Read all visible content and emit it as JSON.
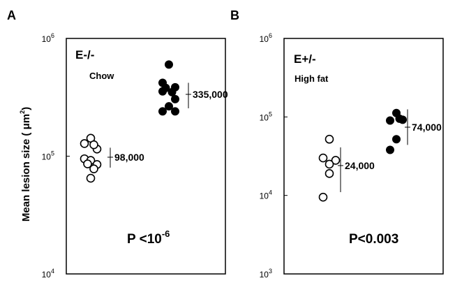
{
  "chart_data": [
    {
      "type": "scatter",
      "panel": "A",
      "group_label": "E-/-",
      "diet_label": "Chow",
      "ylabel": "Mean lesion size ( μm",
      "ylabel_sup": "2",
      "ylabel_close": ")",
      "y_scale": "log",
      "ylim": [
        10000,
        1000000
      ],
      "yticks": [
        {
          "value": 10000,
          "base": "10",
          "exp": "4"
        },
        {
          "value": 100000,
          "base": "10",
          "exp": "5"
        },
        {
          "value": 1000000,
          "base": "10",
          "exp": "6"
        }
      ],
      "series": [
        {
          "marker": "open",
          "values": [
            142000,
            128000,
            115000,
            125000,
            95000,
            92000,
            85000,
            86000,
            78000,
            65000
          ],
          "mean": 98000,
          "mean_label": "98,000",
          "err_low": 80000,
          "err_high": 118000
        },
        {
          "marker": "filled",
          "values": [
            600000,
            420000,
            385000,
            380000,
            350000,
            355000,
            305000,
            265000,
            240000,
            240000
          ],
          "mean": 335000,
          "mean_label": "335,000",
          "err_low": 255000,
          "err_high": 420000
        }
      ],
      "p_value_prefix": "P <10",
      "p_value_exp": "-6"
    },
    {
      "type": "scatter",
      "panel": "B",
      "group_label": "E+/-",
      "diet_label": "High fat",
      "y_scale": "log",
      "ylim": [
        1000,
        1000000
      ],
      "yticks": [
        {
          "value": 1000,
          "base": "10",
          "exp": "3"
        },
        {
          "value": 10000,
          "base": "10",
          "exp": "4"
        },
        {
          "value": 100000,
          "base": "10",
          "exp": "5"
        },
        {
          "value": 1000000,
          "base": "10",
          "exp": "6"
        }
      ],
      "series": [
        {
          "marker": "open",
          "values": [
            52000,
            30000,
            28000,
            25000,
            19000,
            9500
          ],
          "mean": 24000,
          "mean_label": "24,000",
          "err_low": 11000,
          "err_high": 41000
        },
        {
          "marker": "filled",
          "values": [
            112000,
            95000,
            90000,
            92000,
            52000,
            38000
          ],
          "mean": 74000,
          "mean_label": "74,000",
          "err_low": 44000,
          "err_high": 125000
        }
      ],
      "p_value_prefix": "P<0.003",
      "p_value_exp": ""
    }
  ]
}
